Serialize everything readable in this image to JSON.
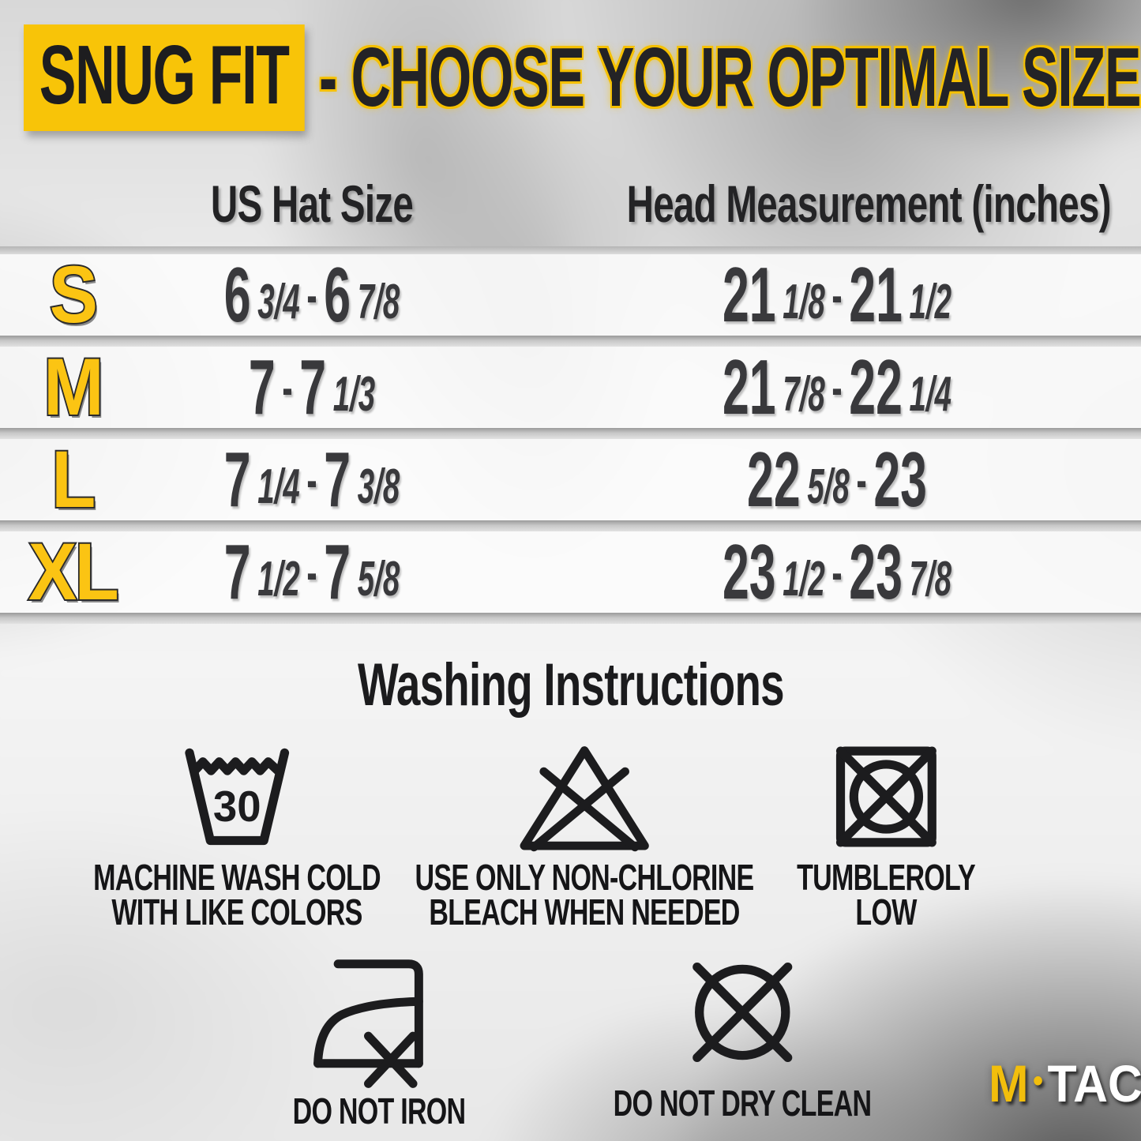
{
  "title": {
    "highlight": "SNUG FIT",
    "dash": "-",
    "rest": "CHOOSE YOUR OPTIMAL SIZE"
  },
  "table": {
    "headers": {
      "hat": "US Hat Size",
      "head": "Head Measurement (inches)"
    },
    "rows": [
      {
        "size": "S",
        "hat": "6 3/4 - 6 7/8",
        "head": "21 1/8 - 21 1/2"
      },
      {
        "size": "M",
        "hat": "7 - 7 1/3",
        "head": "21 7/8 - 22 1/4"
      },
      {
        "size": "L",
        "hat": "7 1/4 - 7 3/8",
        "head": "22 5/8 - 23"
      },
      {
        "size": "XL",
        "hat": "7 1/2 - 7 5/8",
        "head": "23 1/2 - 23 7/8"
      }
    ]
  },
  "washing": {
    "title": "Washing Instructions",
    "items": [
      {
        "icon": "machine-wash-30-icon",
        "value": "30",
        "lines": [
          "MACHINE WASH COLD",
          "WITH LIKE COLORS"
        ]
      },
      {
        "icon": "non-chlorine-bleach-icon",
        "lines": [
          "USE ONLY NON-CHLORINE",
          "BLEACH WHEN NEEDED"
        ]
      },
      {
        "icon": "tumble-dry-low-icon",
        "lines": [
          "TUMBLEROLY",
          "LOW"
        ]
      },
      {
        "icon": "do-not-iron-icon",
        "lines": [
          "DO NOT IRON"
        ]
      },
      {
        "icon": "do-not-dry-clean-icon",
        "lines": [
          "DO NOT DRY CLEAN"
        ]
      }
    ]
  },
  "logo": {
    "m": "M",
    "dot": "•",
    "tac": "TAC"
  },
  "colors": {
    "accent_yellow": "#F8C408",
    "letter_yellow": "#FBC413",
    "text_dark": "#1D1D1F",
    "number_gray": "#39393C"
  }
}
